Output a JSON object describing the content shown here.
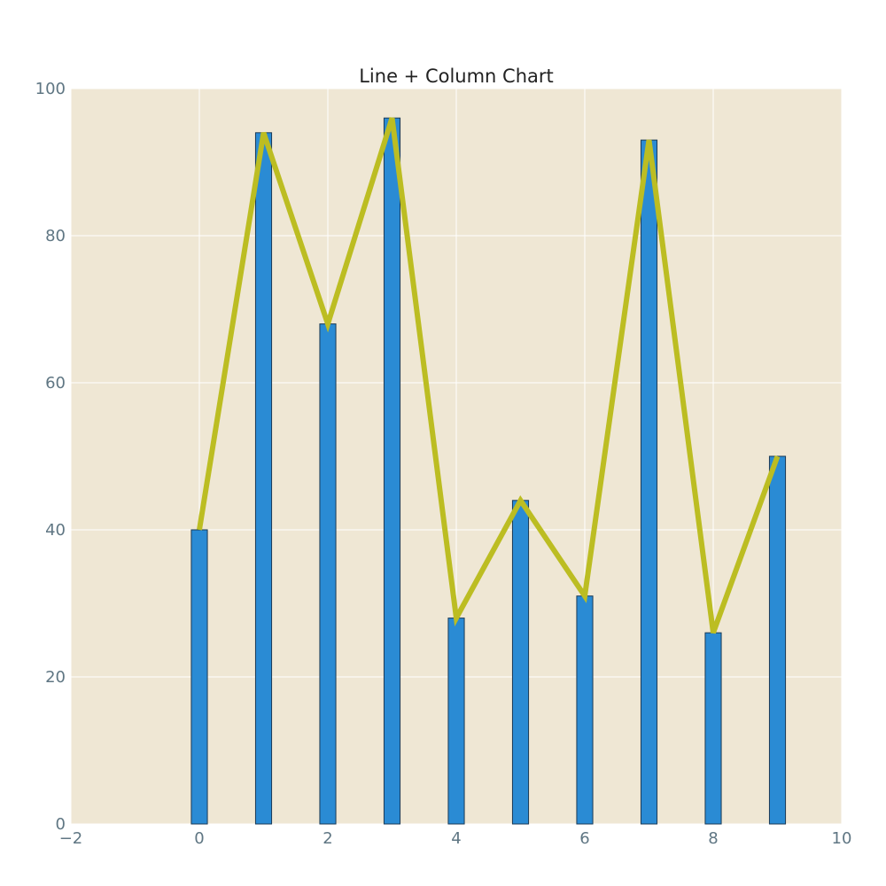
{
  "chart_data": {
    "type": "bar",
    "title": "Line + Column Chart",
    "xlabel": "",
    "ylabel": "",
    "x": [
      0,
      1,
      2,
      3,
      4,
      5,
      6,
      7,
      8,
      9
    ],
    "series": [
      {
        "type": "bar",
        "values": [
          40,
          94,
          68,
          96,
          28,
          44,
          31,
          93,
          26,
          50
        ]
      },
      {
        "type": "line",
        "values": [
          40,
          94,
          68,
          96,
          28,
          44,
          31,
          93,
          26,
          50
        ]
      }
    ],
    "xlim": [
      -2,
      10
    ],
    "ylim": [
      0,
      100
    ],
    "xticks": [
      "−2",
      "0",
      "2",
      "4",
      "6",
      "8",
      "10"
    ],
    "yticks": [
      "0",
      "20",
      "40",
      "60",
      "80",
      "100"
    ],
    "grid": true,
    "colors": {
      "plot_background": "#efe7d4",
      "bar": "#2a8bd4",
      "bar_edge": "#1b3a55",
      "line": "#bcbd22",
      "grid": "#ffffff",
      "tick_text": "#5f7683"
    }
  }
}
